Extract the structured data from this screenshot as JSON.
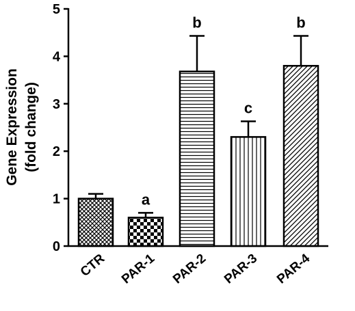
{
  "chart_data": {
    "type": "bar",
    "ylabel": [
      "Gene Expression",
      "(fold change)"
    ],
    "categories": [
      "CTR",
      "PAR-1",
      "PAR-2",
      "PAR-3",
      "PAR-4"
    ],
    "values": [
      1.0,
      0.6,
      3.68,
      2.3,
      3.8
    ],
    "errors": [
      0.1,
      0.1,
      0.75,
      0.33,
      0.63
    ],
    "annotations": [
      null,
      "a",
      "b",
      "c",
      "b"
    ],
    "patterns": [
      "crosshatch",
      "checker",
      "horizontal",
      "vertical",
      "diagonal"
    ],
    "color": "#000000",
    "ylim": [
      0,
      5
    ],
    "yticks": [
      0,
      1,
      2,
      3,
      4,
      5
    ],
    "grid": false
  }
}
